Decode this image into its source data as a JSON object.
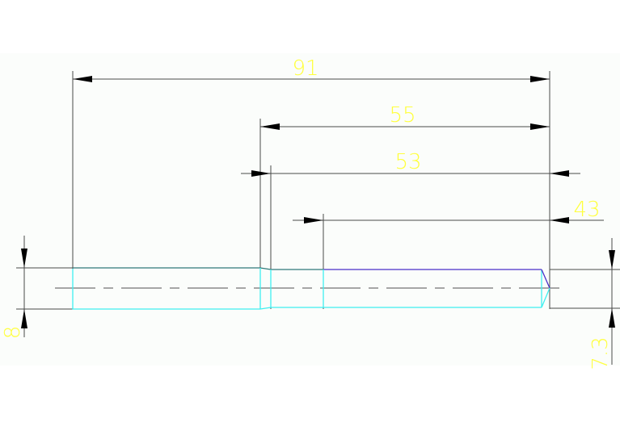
{
  "drawing": {
    "dimensions": {
      "overall_length": "91",
      "length_55": "55",
      "length_53": "53",
      "length_43": "43",
      "left_diameter": "8",
      "right_diameter": "7.3"
    },
    "colors": {
      "background": "#fbfdfb",
      "dimension_line": "#4a4a4a",
      "dimension_text": "#ffff3c",
      "shaft_outline": "#3ff0f0",
      "shaft_top_edge": "#4a30c8",
      "centerline": "#8a8a8a"
    }
  }
}
